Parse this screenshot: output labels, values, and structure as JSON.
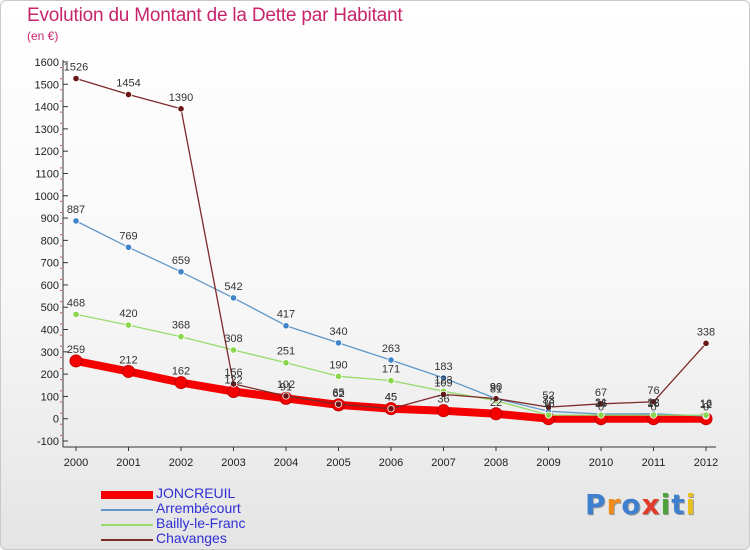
{
  "header": {
    "title": "Evolution du Montant de la Dette par Habitant",
    "subtitle": "(en €)"
  },
  "logo": {
    "text": "Proxiti",
    "colors": [
      "#3f7fd0",
      "#f08c1c",
      "#3f7fd0",
      "#e23b2c",
      "#4aa33a",
      "#3f7fd0",
      "#e8c020"
    ]
  },
  "chart_data": {
    "type": "line",
    "title": "Evolution du Montant de la Dette par Habitant",
    "subtitle": "(en €)",
    "x": [
      "2000",
      "2001",
      "2002",
      "2003",
      "2004",
      "2005",
      "2006",
      "2007",
      "2008",
      "2009",
      "2010",
      "2011",
      "2012"
    ],
    "ylim": [
      -100,
      1600
    ],
    "yticks": [
      -100,
      0,
      100,
      200,
      300,
      400,
      500,
      600,
      700,
      800,
      900,
      1000,
      1100,
      1200,
      1300,
      1400,
      1500,
      1600
    ],
    "grid": false,
    "legend_position": "bottom-left",
    "series": [
      {
        "name": "JONCREUIL",
        "color": "#f50000",
        "marker": "#f50000",
        "values": [
          259,
          212,
          162,
          122,
          91,
          62,
          45,
          36,
          22,
          0,
          0,
          0,
          0
        ],
        "labels": [
          "259",
          "212",
          "162",
          "122",
          "91",
          "62",
          "45",
          "36",
          "22",
          "0",
          "0",
          "0",
          "0"
        ]
      },
      {
        "name": "Arrembécourt",
        "color": "#5f97c9",
        "marker": "#3f83c8",
        "values": [
          887,
          769,
          659,
          542,
          417,
          340,
          263,
          183,
          90,
          33,
          21,
          22,
          12
        ],
        "labels": [
          "887",
          "769",
          "659",
          "542",
          "417",
          "340",
          "263",
          "183",
          "90",
          "33",
          "21",
          "22",
          "12"
        ]
      },
      {
        "name": "Bailly-le-Franc",
        "color": "#96dc6a",
        "marker": "#8ad64a",
        "values": [
          468,
          420,
          368,
          308,
          251,
          190,
          171,
          123,
          81,
          16,
          16,
          16,
          16
        ],
        "labels": [
          "468",
          "420",
          "368",
          "308",
          "251",
          "190",
          "171",
          "123",
          "81",
          "16",
          "16",
          "16",
          "16"
        ]
      },
      {
        "name": "Chavanges",
        "color": "#7d2a2a",
        "marker": "#6b1616",
        "values": [
          1526,
          1454,
          1390,
          156,
          102,
          65,
          45,
          109,
          90,
          52,
          67,
          76,
          338
        ],
        "labels": [
          "1526",
          "1454",
          "1390",
          "156",
          "102",
          "65",
          "45",
          "109",
          "90",
          "52",
          "67",
          "76",
          "338"
        ]
      }
    ]
  }
}
